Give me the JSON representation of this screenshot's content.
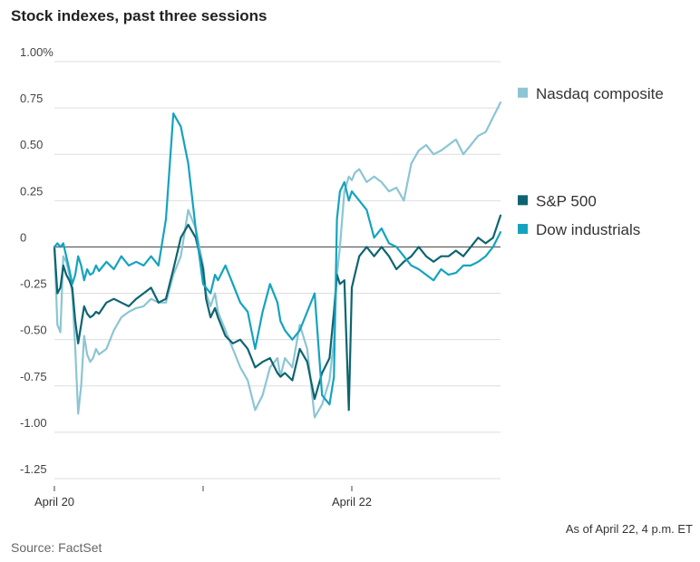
{
  "chart_data": {
    "type": "line",
    "title": "Stock indexes, past three sessions",
    "ylim": [
      -1.25,
      1.0
    ],
    "yticks": [
      {
        "v": 1.0,
        "label": "1.00%"
      },
      {
        "v": 0.75,
        "label": "0.75"
      },
      {
        "v": 0.5,
        "label": "0.50"
      },
      {
        "v": 0.25,
        "label": "0.25"
      },
      {
        "v": 0,
        "label": "0"
      },
      {
        "v": -0.25,
        "label": "-0.25"
      },
      {
        "v": -0.5,
        "label": "-0.50"
      },
      {
        "v": -0.75,
        "label": "-0.75"
      },
      {
        "v": -1.0,
        "label": "-1.00"
      },
      {
        "v": -1.25,
        "label": "-1.25"
      }
    ],
    "xlim": [
      0,
      3
    ],
    "xticks": [
      {
        "v": 0,
        "label": "April 20"
      },
      {
        "v": 1,
        "label": ""
      },
      {
        "v": 2,
        "label": "April 22"
      }
    ],
    "grid": true,
    "series": [
      {
        "name": "Nasdaq composite",
        "color": "#8cc5d4",
        "x": [
          0,
          0.02,
          0.04,
          0.06,
          0.08,
          0.1,
          0.12,
          0.14,
          0.16,
          0.18,
          0.2,
          0.22,
          0.24,
          0.26,
          0.28,
          0.3,
          0.35,
          0.4,
          0.45,
          0.5,
          0.55,
          0.6,
          0.65,
          0.7,
          0.75,
          0.8,
          0.85,
          0.9,
          0.95,
          1.0,
          1.02,
          1.05,
          1.08,
          1.1,
          1.15,
          1.2,
          1.25,
          1.3,
          1.35,
          1.4,
          1.45,
          1.5,
          1.52,
          1.55,
          1.6,
          1.65,
          1.7,
          1.75,
          1.8,
          1.85,
          1.88,
          1.9,
          1.92,
          1.95,
          1.98,
          2.0,
          2.02,
          2.05,
          2.1,
          2.15,
          2.2,
          2.25,
          2.3,
          2.35,
          2.4,
          2.45,
          2.5,
          2.55,
          2.6,
          2.65,
          2.7,
          2.75,
          2.8,
          2.85,
          2.9,
          2.95,
          3.0
        ],
        "values": [
          0,
          -0.42,
          -0.46,
          -0.05,
          -0.08,
          -0.15,
          -0.25,
          -0.55,
          -0.9,
          -0.75,
          -0.48,
          -0.58,
          -0.62,
          -0.6,
          -0.55,
          -0.58,
          -0.55,
          -0.45,
          -0.38,
          -0.35,
          -0.33,
          -0.32,
          -0.28,
          -0.3,
          -0.3,
          -0.15,
          -0.05,
          0.2,
          0.1,
          -0.1,
          -0.25,
          -0.32,
          -0.25,
          -0.35,
          -0.45,
          -0.55,
          -0.65,
          -0.72,
          -0.88,
          -0.8,
          -0.65,
          -0.6,
          -0.7,
          -0.6,
          -0.65,
          -0.42,
          -0.55,
          -0.92,
          -0.85,
          -0.72,
          -0.5,
          -0.15,
          0.0,
          0.3,
          0.38,
          0.36,
          0.4,
          0.42,
          0.35,
          0.38,
          0.35,
          0.3,
          0.32,
          0.25,
          0.45,
          0.52,
          0.55,
          0.5,
          0.52,
          0.55,
          0.58,
          0.5,
          0.55,
          0.6,
          0.62,
          0.7,
          0.78
        ]
      },
      {
        "name": "S&P 500",
        "color": "#0d6470",
        "x": [
          0,
          0.02,
          0.04,
          0.06,
          0.08,
          0.1,
          0.12,
          0.14,
          0.16,
          0.18,
          0.2,
          0.22,
          0.24,
          0.26,
          0.28,
          0.3,
          0.35,
          0.4,
          0.45,
          0.5,
          0.55,
          0.6,
          0.65,
          0.7,
          0.75,
          0.8,
          0.85,
          0.9,
          0.95,
          1.0,
          1.02,
          1.05,
          1.08,
          1.1,
          1.15,
          1.2,
          1.25,
          1.3,
          1.35,
          1.4,
          1.45,
          1.5,
          1.52,
          1.55,
          1.6,
          1.65,
          1.7,
          1.75,
          1.8,
          1.85,
          1.88,
          1.9,
          1.92,
          1.95,
          1.98,
          2.0,
          2.02,
          2.05,
          2.1,
          2.15,
          2.2,
          2.25,
          2.3,
          2.35,
          2.4,
          2.45,
          2.5,
          2.55,
          2.6,
          2.65,
          2.7,
          2.75,
          2.8,
          2.85,
          2.9,
          2.95,
          3.0
        ],
        "values": [
          0,
          -0.25,
          -0.22,
          -0.1,
          -0.15,
          -0.18,
          -0.22,
          -0.4,
          -0.52,
          -0.42,
          -0.32,
          -0.36,
          -0.38,
          -0.37,
          -0.35,
          -0.36,
          -0.3,
          -0.28,
          -0.3,
          -0.32,
          -0.28,
          -0.25,
          -0.22,
          -0.3,
          -0.28,
          -0.12,
          0.05,
          0.12,
          0.05,
          -0.12,
          -0.28,
          -0.38,
          -0.33,
          -0.38,
          -0.48,
          -0.52,
          -0.5,
          -0.55,
          -0.65,
          -0.62,
          -0.6,
          -0.68,
          -0.7,
          -0.68,
          -0.72,
          -0.55,
          -0.62,
          -0.82,
          -0.68,
          -0.6,
          -0.35,
          -0.15,
          -0.2,
          -0.18,
          -0.88,
          -0.22,
          -0.15,
          -0.05,
          0.0,
          -0.05,
          0.0,
          -0.05,
          -0.12,
          -0.08,
          -0.05,
          0.0,
          -0.05,
          -0.08,
          -0.05,
          -0.05,
          -0.02,
          -0.05,
          0.0,
          0.05,
          0.02,
          0.05,
          0.17
        ]
      },
      {
        "name": "Dow industrials",
        "color": "#14a3bf",
        "x": [
          0,
          0.02,
          0.04,
          0.06,
          0.08,
          0.1,
          0.12,
          0.14,
          0.16,
          0.18,
          0.2,
          0.22,
          0.24,
          0.26,
          0.28,
          0.3,
          0.35,
          0.4,
          0.45,
          0.5,
          0.55,
          0.6,
          0.65,
          0.7,
          0.75,
          0.8,
          0.85,
          0.9,
          0.95,
          1.0,
          1.02,
          1.05,
          1.08,
          1.1,
          1.15,
          1.2,
          1.25,
          1.3,
          1.35,
          1.4,
          1.45,
          1.5,
          1.52,
          1.55,
          1.6,
          1.65,
          1.7,
          1.75,
          1.8,
          1.85,
          1.88,
          1.9,
          1.92,
          1.95,
          1.98,
          2.0,
          2.02,
          2.05,
          2.1,
          2.15,
          2.2,
          2.25,
          2.3,
          2.35,
          2.4,
          2.45,
          2.5,
          2.55,
          2.6,
          2.65,
          2.7,
          2.75,
          2.8,
          2.85,
          2.9,
          2.95,
          3.0
        ],
        "values": [
          0,
          0.02,
          0.0,
          0.02,
          -0.05,
          -0.12,
          -0.2,
          -0.15,
          -0.05,
          -0.1,
          -0.18,
          -0.12,
          -0.15,
          -0.14,
          -0.1,
          -0.13,
          -0.08,
          -0.12,
          -0.05,
          -0.1,
          -0.08,
          -0.1,
          -0.05,
          -0.1,
          0.15,
          0.72,
          0.65,
          0.45,
          0.1,
          -0.2,
          -0.22,
          -0.25,
          -0.15,
          -0.18,
          -0.1,
          -0.2,
          -0.3,
          -0.35,
          -0.55,
          -0.35,
          -0.2,
          -0.3,
          -0.4,
          -0.45,
          -0.5,
          -0.45,
          -0.35,
          -0.25,
          -0.8,
          -0.85,
          -0.7,
          0.15,
          0.3,
          0.35,
          0.25,
          0.3,
          0.28,
          0.25,
          0.2,
          0.05,
          0.1,
          0.02,
          0.0,
          -0.05,
          -0.1,
          -0.12,
          -0.15,
          -0.18,
          -0.12,
          -0.15,
          -0.14,
          -0.1,
          -0.1,
          -0.08,
          -0.05,
          0.0,
          0.08
        ]
      }
    ],
    "legend": [
      {
        "label": "Nasdaq composite",
        "color": "#8cc5d4",
        "v": 0.83
      },
      {
        "label": "S&P 500",
        "color": "#0d6470",
        "v": 0.25
      },
      {
        "label": "Dow industrials",
        "color": "#14a3bf",
        "v": 0.095
      }
    ],
    "note": "As of April 22, 4 p.m. ET",
    "source": "Source: FactSet"
  }
}
